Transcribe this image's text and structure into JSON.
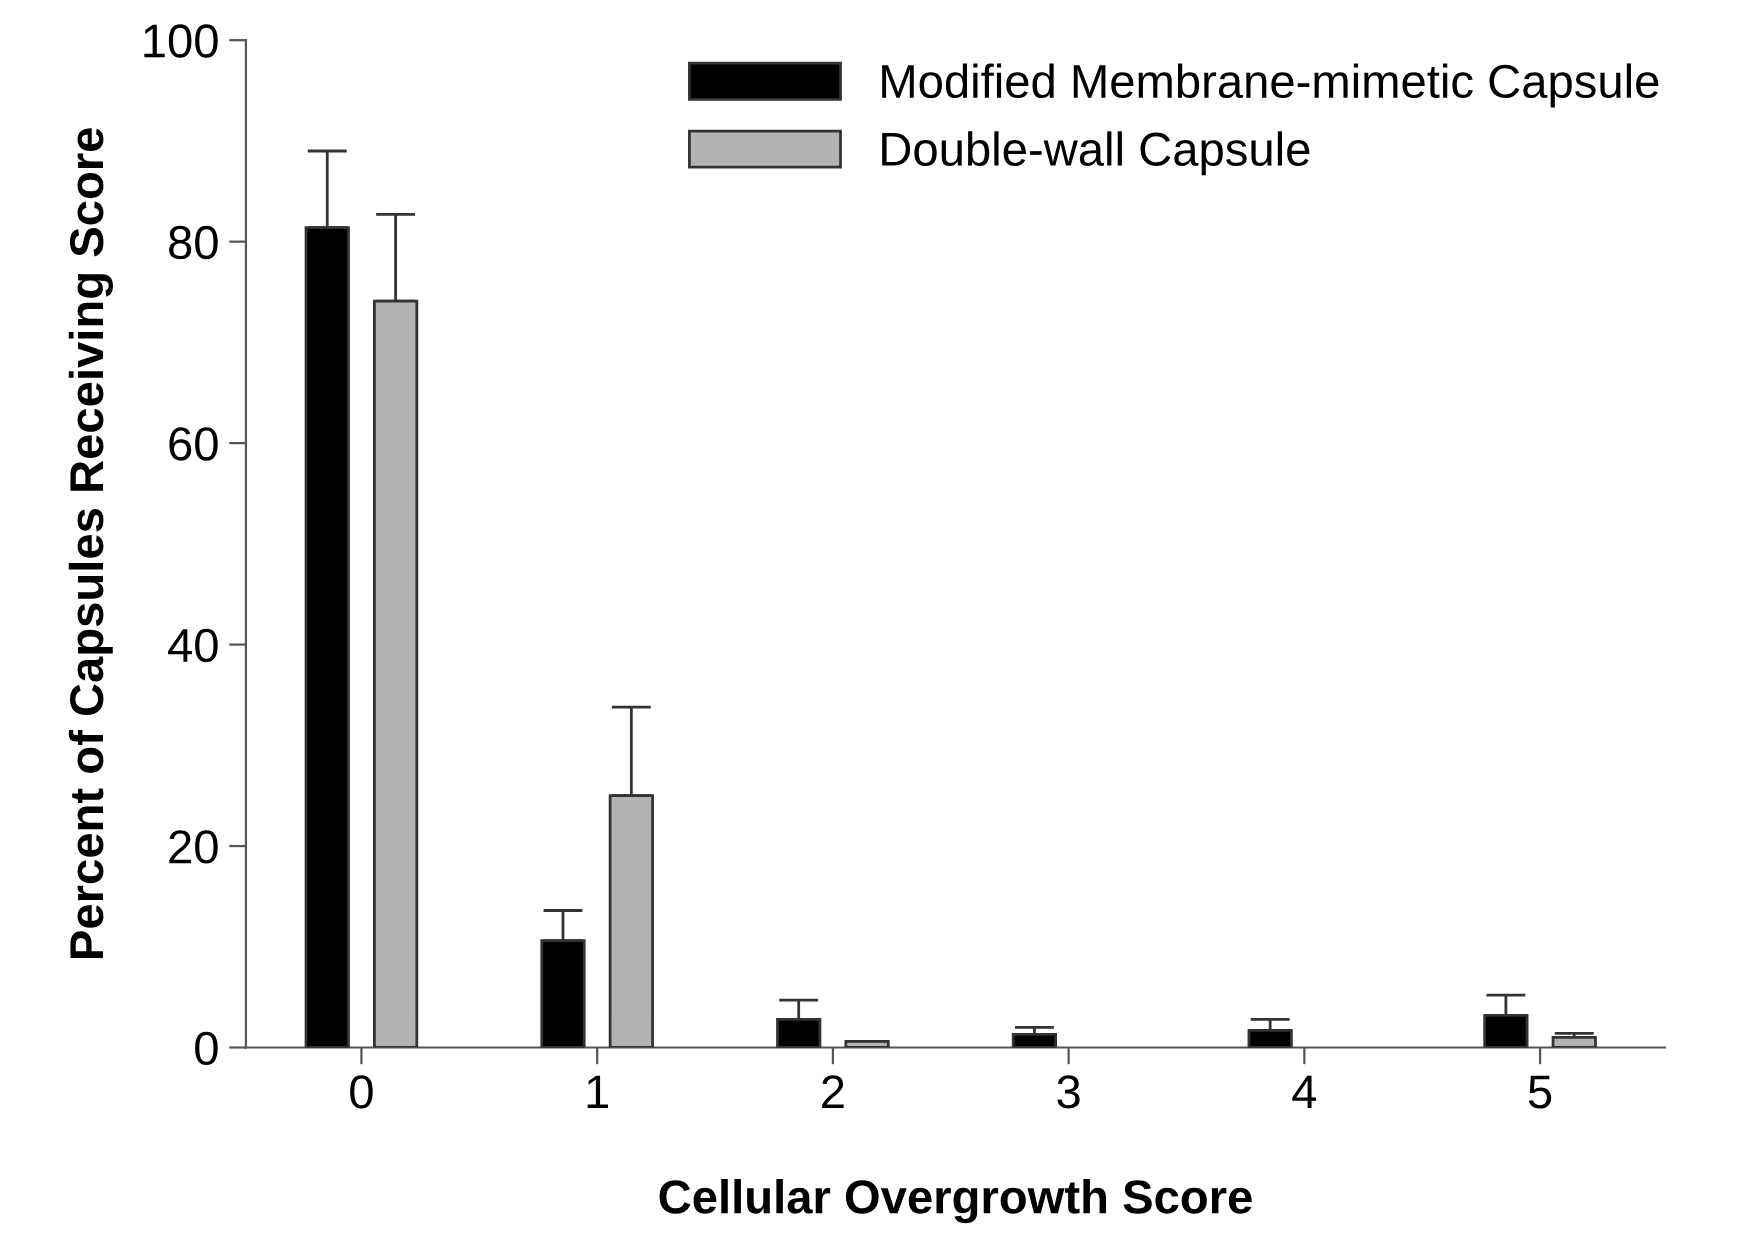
{
  "chart_data": {
    "type": "bar",
    "xlabel": "Cellular Overgrowth Score",
    "ylabel": "Percent of Capsules Receiving Score",
    "categories": [
      "0",
      "1",
      "2",
      "3",
      "4",
      "5"
    ],
    "series": [
      {
        "name": "Modified Membrane-mimetic Capsule",
        "color": "#000000",
        "values": [
          81.4,
          10.6,
          2.8,
          1.3,
          1.7,
          3.2
        ],
        "errors": [
          [
            81.4,
            89.0
          ],
          [
            10.6,
            13.6
          ],
          [
            2.8,
            4.7
          ],
          [
            1.3,
            2.0
          ],
          [
            1.7,
            2.8
          ],
          [
            3.2,
            5.2
          ]
        ]
      },
      {
        "name": "Double-wall Capsule",
        "color": "#b3b3b3",
        "values": [
          74.1,
          25.0,
          0.6,
          null,
          null,
          1.0
        ],
        "errors": [
          [
            74.1,
            82.7
          ],
          [
            25.0,
            33.8
          ],
          null,
          null,
          null,
          [
            1.0,
            1.4
          ]
        ]
      }
    ],
    "ylim": [
      0,
      100
    ],
    "yticks": [
      0,
      20,
      40,
      60,
      80,
      100
    ],
    "grid": false,
    "legend": "top right"
  }
}
